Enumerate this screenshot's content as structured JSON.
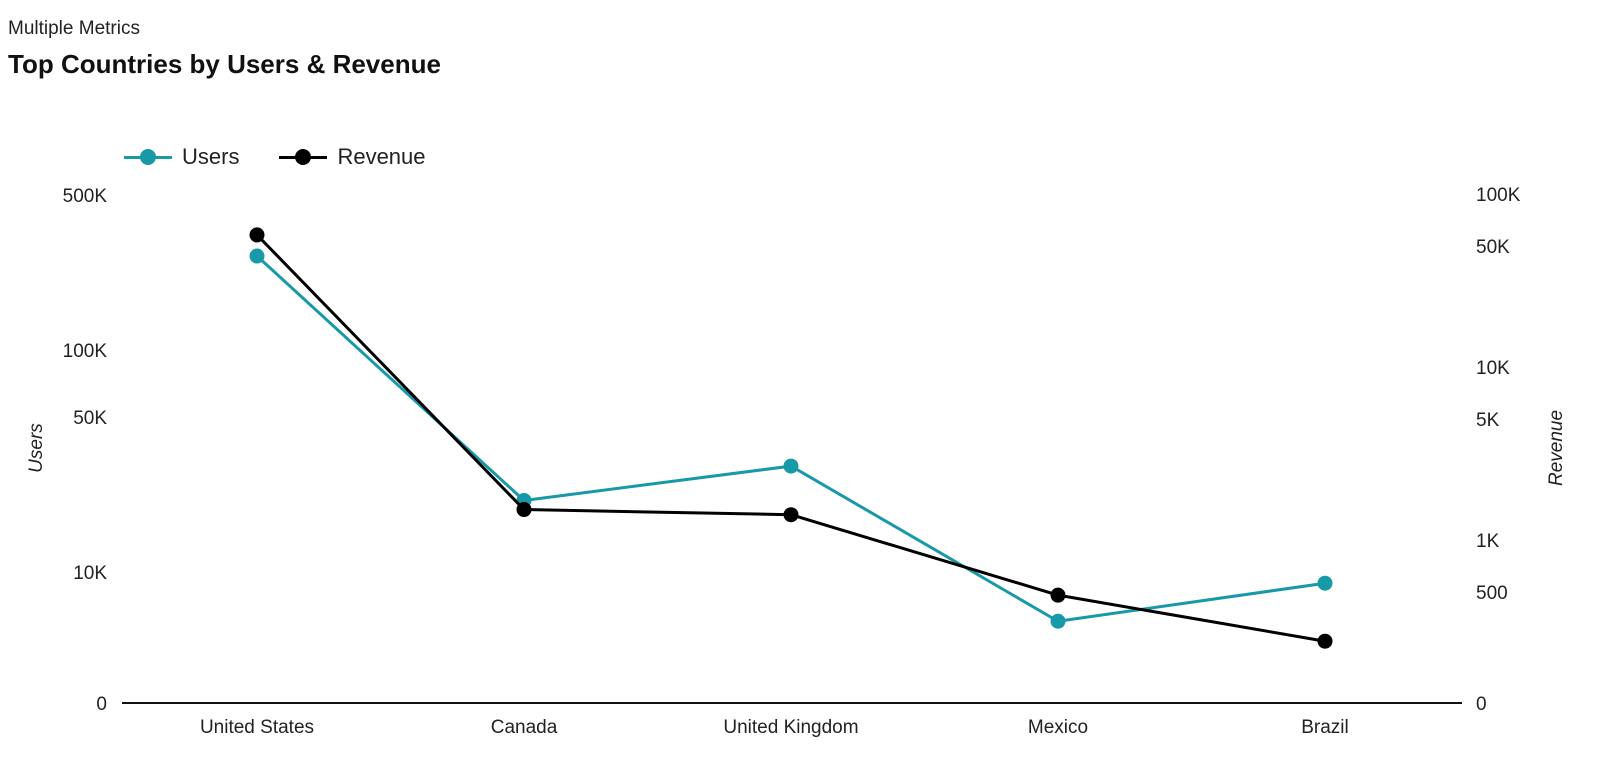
{
  "header": {
    "subtitle": "Multiple Metrics",
    "title": "Top Countries by Users & Revenue"
  },
  "chart_data": {
    "type": "line",
    "title": "Top Countries by Users & Revenue",
    "subtitle": "Multiple Metrics",
    "categories": [
      "United States",
      "Canada",
      "United Kingdom",
      "Mexico",
      "Brazil"
    ],
    "series": [
      {
        "name": "Users",
        "axis": "left",
        "color": "#1899a8",
        "values": [
          265000,
          21000,
          30000,
          6000,
          8900
        ]
      },
      {
        "name": "Revenue",
        "axis": "right",
        "color": "#000000",
        "values": [
          58000,
          1500,
          1400,
          480,
          260
        ]
      }
    ],
    "y_left": {
      "label": "Users",
      "scale": "log",
      "ticks": [
        {
          "value": 10000,
          "label": "10K"
        },
        {
          "value": 50000,
          "label": "50K"
        },
        {
          "value": 100000,
          "label": "100K"
        },
        {
          "value": 500000,
          "label": "500K"
        }
      ],
      "zero_label": "0"
    },
    "y_right": {
      "label": "Revenue",
      "scale": "log",
      "ticks": [
        {
          "value": 500,
          "label": "500"
        },
        {
          "value": 1000,
          "label": "1K"
        },
        {
          "value": 5000,
          "label": "5K"
        },
        {
          "value": 10000,
          "label": "10K"
        },
        {
          "value": 50000,
          "label": "50K"
        },
        {
          "value": 100000,
          "label": "100K"
        }
      ],
      "zero_label": "0"
    },
    "grid": false,
    "legend_position": "top-left"
  }
}
